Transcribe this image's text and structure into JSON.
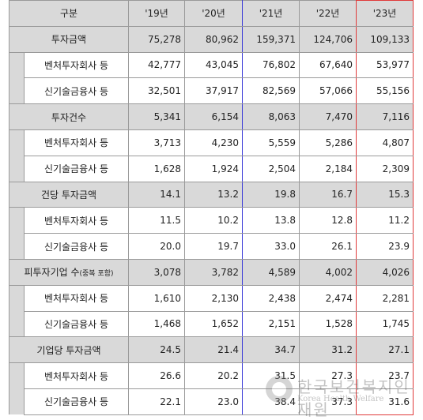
{
  "header": {
    "col0": "구분",
    "years": [
      "'19년",
      "'20년",
      "'21년",
      "'22년",
      "'23년"
    ]
  },
  "groups": [
    {
      "label": "투자금액",
      "values": [
        "75,278",
        "80,962",
        "159,371",
        "124,706",
        "109,133"
      ],
      "rows": [
        {
          "label": "벤처투자회사 등",
          "values": [
            "42,777",
            "43,045",
            "76,802",
            "67,640",
            "53,977"
          ]
        },
        {
          "label": "신기술금융사 등",
          "values": [
            "32,501",
            "37,917",
            "82,569",
            "57,066",
            "55,156"
          ]
        }
      ]
    },
    {
      "label": "투자건수",
      "values": [
        "5,341",
        "6,154",
        "8,063",
        "7,470",
        "7,116"
      ],
      "rows": [
        {
          "label": "벤처투자회사 등",
          "values": [
            "3,713",
            "4,230",
            "5,559",
            "5,286",
            "4,807"
          ]
        },
        {
          "label": "신기술금융사 등",
          "values": [
            "1,628",
            "1,924",
            "2,504",
            "2,184",
            "2,309"
          ]
        }
      ]
    },
    {
      "label": "건당 투자금액",
      "values": [
        "14.1",
        "13.2",
        "19.8",
        "16.7",
        "15.3"
      ],
      "rows": [
        {
          "label": "벤처투자회사 등",
          "values": [
            "11.5",
            "10.2",
            "13.8",
            "12.8",
            "11.2"
          ]
        },
        {
          "label": "신기술금융사 등",
          "values": [
            "20.0",
            "19.7",
            "33.0",
            "26.1",
            "23.9"
          ]
        }
      ]
    },
    {
      "label": "피투자기업 수",
      "label_note": "(중복 포함)",
      "values": [
        "3,078",
        "3,782",
        "4,589",
        "4,002",
        "4,026"
      ],
      "rows": [
        {
          "label": "벤처투자회사 등",
          "values": [
            "1,610",
            "2,130",
            "2,438",
            "2,474",
            "2,281"
          ]
        },
        {
          "label": "신기술금융사 등",
          "values": [
            "1,468",
            "1,652",
            "2,151",
            "1,528",
            "1,745"
          ]
        }
      ]
    },
    {
      "label": "기업당 투자금액",
      "values": [
        "24.5",
        "21.4",
        "34.7",
        "31.2",
        "27.1"
      ],
      "rows": [
        {
          "label": "벤처투자회사 등",
          "values": [
            "26.6",
            "20.2",
            "31.5",
            "27.3",
            "23.7"
          ]
        },
        {
          "label": "신기술금융사 등",
          "values": [
            "22.1",
            "23.0",
            "38.4",
            "37.3",
            "31.6"
          ]
        }
      ]
    }
  ],
  "watermark": {
    "text": "한국보건복지인재원",
    "subtext": "Korea Health Welfare",
    "icon": "emblem-icon"
  }
}
